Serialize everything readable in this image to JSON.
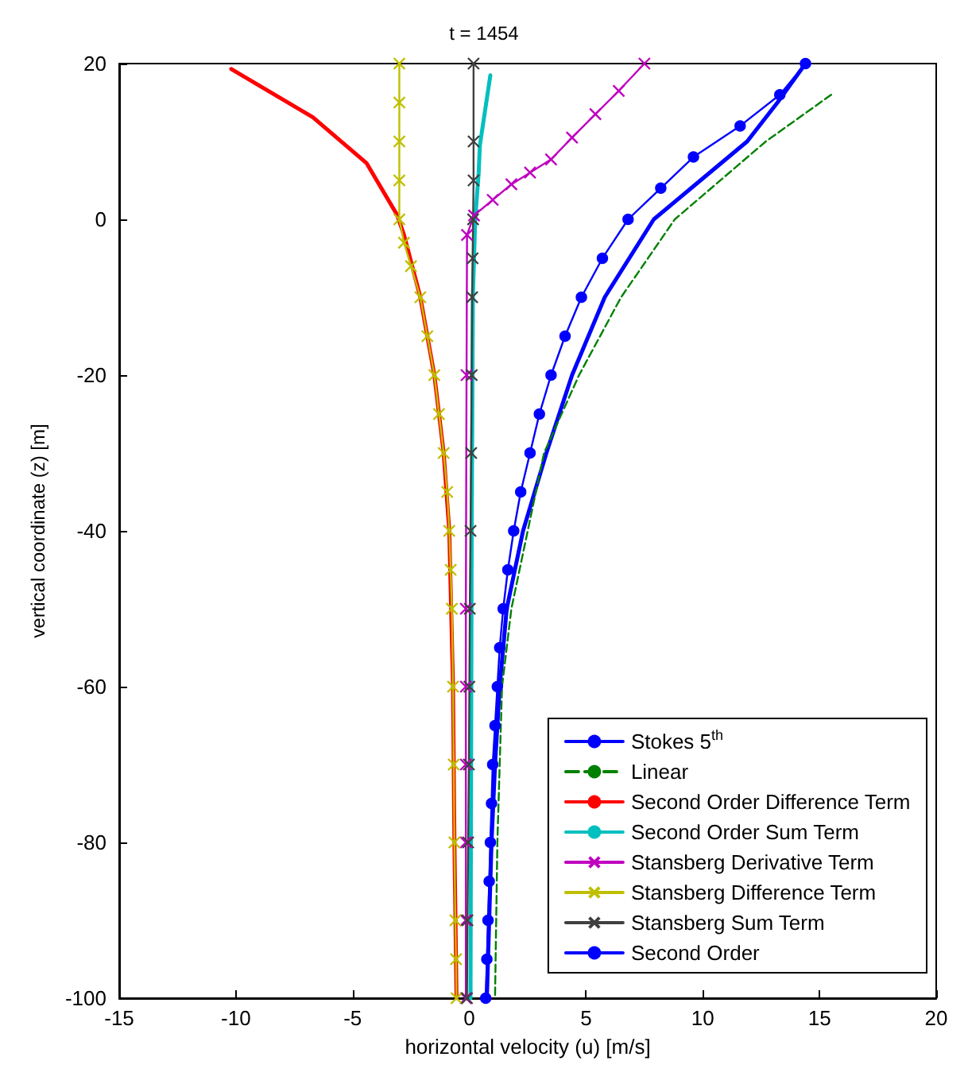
{
  "chart_data": {
    "type": "line",
    "title": "t = 1454",
    "xlabel": "horizontal velocity (u) [m/s]",
    "ylabel": "vertical coordinate (z) [m]",
    "xlim": [
      -15,
      20
    ],
    "xticks": [
      -15,
      -10,
      -5,
      0,
      5,
      10,
      15,
      20
    ],
    "ylim": [
      -100,
      20
    ],
    "yticks": [
      -100,
      -80,
      -60,
      -40,
      -20,
      0,
      20
    ],
    "grid": false,
    "legend": "bottom right",
    "series": [
      {
        "name": "Stokes 5$^{th}$",
        "color": "#0000ff",
        "line_style": "solid",
        "marker": "none",
        "x": [
          14.4,
          13.2,
          11.9,
          9.9,
          7.9,
          5.8,
          4.4,
          3.3,
          2.3,
          1.6,
          1.3,
          1.1,
          0.95,
          0.85,
          0.75
        ],
        "values": [
          20,
          15,
          10,
          5,
          0,
          -10,
          -20,
          -30,
          -40,
          -50,
          -60,
          -70,
          -80,
          -90,
          -100
        ]
      },
      {
        "name": "Linear",
        "color": "#008000",
        "line_style": "dashed",
        "marker": "none",
        "x": [
          15.5,
          12.7,
          8.8,
          6.5,
          4.7,
          3.2,
          2.5,
          1.8,
          1.4,
          1.3,
          1.2,
          1.15,
          1.1
        ],
        "values": [
          16,
          10,
          0,
          -10,
          -20,
          -30,
          -40,
          -50,
          -60,
          -70,
          -80,
          -90,
          -100
        ]
      },
      {
        "name": "Second Order Difference Term",
        "color": "#ff0000",
        "line_style": "solid",
        "marker": "none",
        "x": [
          -10.2,
          -6.7,
          -4.4,
          -3.1,
          -2.8,
          -2.1,
          -1.5,
          -1.1,
          -0.86,
          -0.7,
          -0.64,
          -0.55
        ],
        "values": [
          19.3,
          13.1,
          7.2,
          0.6,
          -2,
          -10,
          -20,
          -30,
          -40,
          -60,
          -80,
          -100
        ]
      },
      {
        "name": "Second Order Sum Term",
        "color": "#00bfbf",
        "line_style": "solid",
        "marker": "none",
        "x": [
          0.05,
          0.1,
          0.15,
          0.25,
          0.4,
          0.45,
          0.9
        ],
        "values": [
          -100,
          -40,
          -10,
          0,
          6,
          9.5,
          18.5
        ]
      },
      {
        "name": "Stansberg Derivative Term",
        "color": "#bf00bf",
        "line_style": "solid",
        "marker": "cross",
        "x": [
          -0.15,
          -0.15,
          -0.15,
          -0.15,
          -0.15,
          -0.15,
          -0.12,
          -0.1,
          0.2,
          1.0,
          1.8,
          2.6,
          3.5,
          4.4,
          5.4,
          6.4,
          7.5
        ],
        "values": [
          -100,
          -90,
          -80,
          -70,
          -60,
          -50,
          -20,
          -2,
          0.5,
          2.5,
          4.5,
          6,
          7.7,
          10.5,
          13.5,
          16.5,
          20
        ]
      },
      {
        "name": "Stansberg Difference Term",
        "color": "#bfbf00",
        "line_style": "solid",
        "marker": "cross",
        "x": [
          -3.0,
          -3.0,
          -3.0,
          -3.0,
          -3.0,
          -2.8,
          -2.5,
          -2.1,
          -1.8,
          -1.5,
          -1.3,
          -1.1,
          -0.95,
          -0.86,
          -0.8,
          -0.75,
          -0.7,
          -0.67,
          -0.64,
          -0.6,
          -0.57,
          -0.55
        ],
        "values": [
          20,
          15,
          10,
          5,
          0,
          -3,
          -6,
          -10,
          -15,
          -20,
          -25,
          -30,
          -35,
          -40,
          -45,
          -50,
          -60,
          -70,
          -80,
          -90,
          -95,
          -100
        ]
      },
      {
        "name": "Stansberg Sum Term",
        "color": "#404040",
        "line_style": "solid",
        "marker": "cross",
        "x": [
          -0.1,
          -0.08,
          -0.05,
          -0.02,
          0,
          0.02,
          0.05,
          0.08,
          0.1,
          0.12,
          0.14,
          0.16,
          0.18,
          0.18,
          0.18
        ],
        "values": [
          -100,
          -90,
          -80,
          -70,
          -60,
          -50,
          -40,
          -30,
          -20,
          -10,
          -5,
          0,
          5,
          10,
          20
        ]
      },
      {
        "name": "Second Order",
        "color": "#0000ff",
        "line_style": "solid",
        "marker": "circle",
        "x": [
          14.4,
          13.3,
          11.6,
          9.6,
          8.2,
          6.8,
          5.7,
          4.8,
          4.1,
          3.5,
          3.0,
          2.6,
          2.2,
          1.9,
          1.65,
          1.45,
          1.3,
          1.2,
          1.1,
          1.0,
          0.95,
          0.9,
          0.85,
          0.8,
          0.75,
          0.7
        ],
        "values": [
          20,
          16,
          12,
          8,
          4,
          0,
          -5,
          -10,
          -15,
          -20,
          -25,
          -30,
          -35,
          -40,
          -45,
          -50,
          -55,
          -60,
          -65,
          -70,
          -75,
          -80,
          -85,
          -90,
          -95,
          -100
        ]
      }
    ]
  }
}
